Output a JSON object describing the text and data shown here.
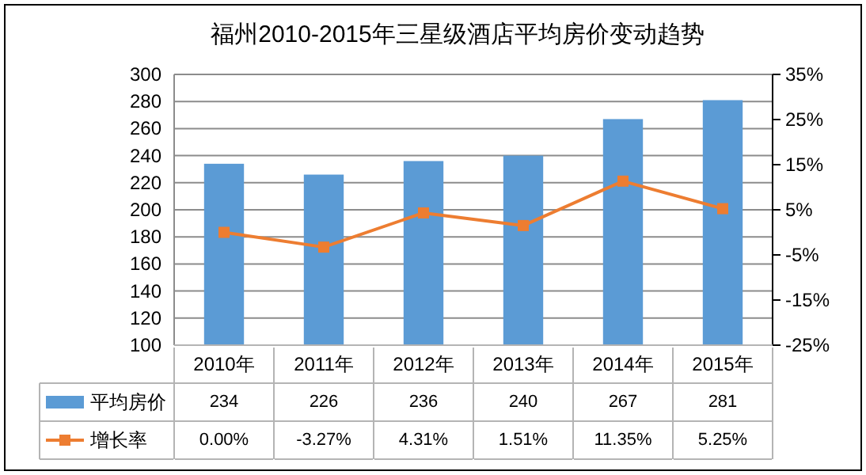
{
  "chart_data": {
    "type": "bar",
    "title": "福州2010-2015年三星级酒店平均房价变动趋势",
    "categories": [
      "2010年",
      "2011年",
      "2012年",
      "2013年",
      "2014年",
      "2015年"
    ],
    "series": [
      {
        "name": "平均房价",
        "color": "#5b9bd5",
        "values": [
          234,
          226,
          236,
          240,
          267,
          281
        ],
        "value_labels": [
          "234",
          "226",
          "236",
          "240",
          "267",
          "281"
        ]
      },
      {
        "name": "增长率",
        "type": "line",
        "axis": "y2",
        "color": "#ed7d31",
        "values": [
          0.0,
          -3.27,
          4.31,
          1.51,
          11.35,
          5.25
        ],
        "value_labels": [
          "0.00%",
          "-3.27%",
          "4.31%",
          "1.51%",
          "11.35%",
          "5.25%"
        ]
      }
    ],
    "ylim": [
      100,
      300
    ],
    "yticks": [
      100,
      120,
      140,
      160,
      180,
      200,
      220,
      240,
      260,
      280,
      300
    ],
    "y2lim": [
      -25,
      35
    ],
    "y2ticks": [
      {
        "value": -25,
        "label": "-25%"
      },
      {
        "value": -15,
        "label": "-15%"
      },
      {
        "value": -5,
        "label": "-5%"
      },
      {
        "value": 5,
        "label": "5%"
      },
      {
        "value": 15,
        "label": "15%"
      },
      {
        "value": 25,
        "label": "25%"
      },
      {
        "value": 35,
        "label": "35%"
      }
    ],
    "grid": "y",
    "legend": "bottom",
    "marker": "square",
    "line_style": "solid"
  }
}
